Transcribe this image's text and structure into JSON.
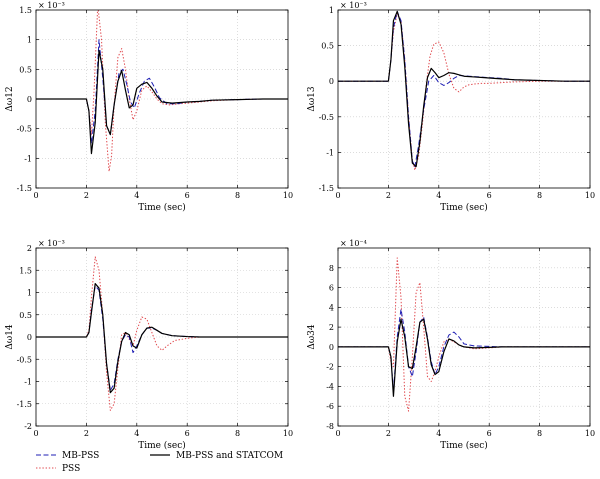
{
  "colors": {
    "mbpss": "#1f1fb4",
    "pss": "#e0474c",
    "statcom": "#000000",
    "grid": "#c8c8c8"
  },
  "legend": {
    "placement": "bottom",
    "entries": [
      {
        "label": "MB-PSS",
        "series": "mbpss",
        "style": "dashed"
      },
      {
        "label": "PSS",
        "series": "pss",
        "style": "dotted"
      },
      {
        "label": "MB-PSS and STATCOM",
        "series": "statcom",
        "style": "solid"
      }
    ]
  },
  "chart_data": [
    {
      "type": "line",
      "ylabel": "Δω12",
      "xlabel": "Time (sec)",
      "exponent": "× 10⁻³",
      "xlim": [
        0,
        10
      ],
      "ylim": [
        -1.5,
        1.5
      ],
      "xticks": [
        0,
        2,
        4,
        6,
        8,
        10
      ],
      "yticks": [
        -1.5,
        -1,
        -0.5,
        0,
        0.5,
        1,
        1.5
      ],
      "grid": true,
      "series": [
        {
          "name": "MB-PSS",
          "key": "mbpss",
          "x": [
            0,
            2,
            2.1,
            2.2,
            2.35,
            2.5,
            2.65,
            2.8,
            2.95,
            3.1,
            3.3,
            3.45,
            3.6,
            3.75,
            3.9,
            4.1,
            4.3,
            4.5,
            4.7,
            4.9,
            5.2,
            5.6,
            6,
            6.5,
            7,
            8,
            9,
            10
          ],
          "y": [
            0,
            0,
            -0.2,
            -0.75,
            -0.2,
            1.0,
            0.35,
            -0.45,
            -0.6,
            -0.1,
            0.45,
            0.5,
            0.25,
            -0.05,
            -0.15,
            0.1,
            0.3,
            0.35,
            0.2,
            0.02,
            -0.08,
            -0.08,
            -0.05,
            -0.04,
            -0.02,
            -0.01,
            0,
            0
          ]
        },
        {
          "name": "PSS",
          "key": "pss",
          "x": [
            0,
            2,
            2.1,
            2.2,
            2.3,
            2.45,
            2.6,
            2.75,
            2.9,
            3.0,
            3.1,
            3.25,
            3.4,
            3.55,
            3.7,
            3.85,
            4.0,
            4.2,
            4.4,
            4.6,
            4.8,
            5.0,
            5.3,
            5.7,
            6,
            6.5,
            7,
            8,
            9,
            10
          ],
          "y": [
            0,
            0,
            -0.2,
            -0.6,
            0.1,
            1.58,
            1.0,
            -0.4,
            -1.22,
            -0.95,
            -0.1,
            0.7,
            0.85,
            0.5,
            0.0,
            -0.35,
            -0.2,
            0.15,
            0.22,
            0.12,
            0.0,
            -0.08,
            -0.1,
            -0.08,
            -0.07,
            -0.05,
            -0.03,
            -0.01,
            0,
            0
          ]
        },
        {
          "name": "MB-PSS and STATCOM",
          "key": "statcom",
          "x": [
            0,
            2,
            2.1,
            2.2,
            2.35,
            2.5,
            2.65,
            2.8,
            2.95,
            3.1,
            3.25,
            3.4,
            3.55,
            3.7,
            3.85,
            4.0,
            4.2,
            4.4,
            4.6,
            4.8,
            5.0,
            5.4,
            6,
            6.5,
            7,
            8,
            9,
            10
          ],
          "y": [
            0,
            0,
            -0.2,
            -0.92,
            -0.4,
            0.82,
            0.5,
            -0.45,
            -0.6,
            -0.1,
            0.3,
            0.48,
            0.15,
            -0.15,
            -0.1,
            0.18,
            0.25,
            0.28,
            0.18,
            0.05,
            -0.05,
            -0.07,
            -0.05,
            -0.04,
            -0.02,
            -0.01,
            0,
            0
          ]
        }
      ]
    },
    {
      "type": "line",
      "ylabel": "Δω13",
      "xlabel": "Time (sec)",
      "exponent": "× 10⁻³",
      "xlim": [
        0,
        10
      ],
      "ylim": [
        -1.5,
        1
      ],
      "xticks": [
        0,
        2,
        4,
        6,
        8,
        10
      ],
      "yticks": [
        -1.5,
        -1,
        -0.5,
        0,
        0.5,
        1
      ],
      "grid": true,
      "series": [
        {
          "name": "MB-PSS",
          "key": "mbpss",
          "x": [
            0,
            2,
            2.1,
            2.2,
            2.35,
            2.5,
            2.65,
            2.8,
            2.95,
            3.05,
            3.2,
            3.4,
            3.6,
            3.8,
            4.0,
            4.2,
            4.4,
            4.6,
            4.8,
            5.2,
            5.6,
            6,
            6.5,
            7,
            8,
            9,
            10
          ],
          "y": [
            0,
            0,
            0.3,
            0.75,
            0.98,
            0.85,
            0.3,
            -0.5,
            -1.12,
            -1.2,
            -0.9,
            -0.4,
            0.0,
            0.08,
            -0.02,
            -0.06,
            -0.02,
            0.04,
            0.08,
            0.07,
            0.06,
            0.05,
            0.04,
            0.02,
            0.01,
            0,
            0
          ]
        },
        {
          "name": "PSS",
          "key": "pss",
          "x": [
            0,
            2,
            2.1,
            2.2,
            2.35,
            2.5,
            2.65,
            2.8,
            2.95,
            3.05,
            3.2,
            3.35,
            3.5,
            3.65,
            3.8,
            4.0,
            4.2,
            4.4,
            4.6,
            4.8,
            5.0,
            5.2,
            5.4,
            5.7,
            6,
            6.5,
            7,
            8,
            9,
            10
          ],
          "y": [
            0,
            0,
            0.3,
            0.7,
            0.95,
            0.85,
            0.3,
            -0.5,
            -1.1,
            -1.25,
            -1.05,
            -0.6,
            -0.05,
            0.35,
            0.52,
            0.55,
            0.4,
            0.1,
            -0.1,
            -0.15,
            -0.08,
            -0.05,
            -0.04,
            -0.03,
            -0.03,
            -0.02,
            -0.01,
            0,
            0,
            0
          ]
        },
        {
          "name": "MB-PSS and STATCOM",
          "key": "statcom",
          "x": [
            0,
            2,
            2.1,
            2.2,
            2.35,
            2.5,
            2.65,
            2.8,
            2.95,
            3.1,
            3.25,
            3.4,
            3.55,
            3.7,
            3.85,
            4.0,
            4.2,
            4.4,
            4.6,
            4.8,
            5.0,
            5.4,
            5.8,
            6.2,
            7,
            8,
            9,
            10
          ],
          "y": [
            0,
            0,
            0.3,
            0.85,
            0.98,
            0.8,
            0.2,
            -0.6,
            -1.15,
            -1.2,
            -0.85,
            -0.35,
            0.05,
            0.18,
            0.12,
            0.05,
            0.08,
            0.12,
            0.11,
            0.09,
            0.07,
            0.06,
            0.05,
            0.04,
            0.02,
            0.01,
            0,
            0
          ]
        }
      ]
    },
    {
      "type": "line",
      "ylabel": "Δω14",
      "xlabel": "Time (sec)",
      "exponent": "× 10⁻³",
      "xlim": [
        0,
        10
      ],
      "ylim": [
        -2,
        2
      ],
      "xticks": [
        0,
        2,
        4,
        6,
        8,
        10
      ],
      "yticks": [
        -2,
        -1.5,
        -1,
        -0.5,
        0,
        0.5,
        1,
        1.5,
        2
      ],
      "grid": true,
      "series": [
        {
          "name": "MB-PSS",
          "key": "mbpss",
          "x": [
            0,
            2,
            2.1,
            2.2,
            2.35,
            2.5,
            2.65,
            2.8,
            2.95,
            3.1,
            3.25,
            3.4,
            3.55,
            3.7,
            3.85,
            4.0,
            4.2,
            4.4,
            4.6,
            4.8,
            5.0,
            5.4,
            6,
            6.5,
            7,
            8,
            9,
            10
          ],
          "y": [
            0,
            0,
            0.1,
            0.6,
            1.15,
            1.05,
            0.4,
            -0.6,
            -1.2,
            -1.05,
            -0.5,
            -0.1,
            0.05,
            0.0,
            -0.35,
            -0.2,
            0.05,
            0.2,
            0.2,
            0.15,
            0.08,
            0.03,
            0.01,
            0,
            0,
            0,
            0,
            0
          ]
        },
        {
          "name": "PSS",
          "key": "pss",
          "x": [
            0,
            2,
            2.1,
            2.2,
            2.35,
            2.5,
            2.65,
            2.8,
            2.95,
            3.1,
            3.25,
            3.4,
            3.55,
            3.7,
            3.85,
            4.0,
            4.2,
            4.4,
            4.6,
            4.8,
            5.0,
            5.2,
            5.5,
            6,
            6.5,
            7,
            8,
            9,
            10
          ],
          "y": [
            0,
            0,
            0.15,
            0.9,
            1.8,
            1.5,
            0.5,
            -0.8,
            -1.65,
            -1.5,
            -0.7,
            0.05,
            0.1,
            -0.05,
            -0.2,
            0.15,
            0.45,
            0.4,
            0.1,
            -0.2,
            -0.3,
            -0.2,
            -0.08,
            -0.03,
            0,
            0,
            0,
            0,
            0
          ]
        },
        {
          "name": "MB-PSS and STATCOM",
          "key": "statcom",
          "x": [
            0,
            2,
            2.1,
            2.2,
            2.35,
            2.5,
            2.65,
            2.8,
            2.95,
            3.1,
            3.25,
            3.4,
            3.55,
            3.7,
            3.85,
            4.0,
            4.2,
            4.4,
            4.6,
            4.8,
            5.0,
            5.4,
            6,
            6.5,
            7,
            8,
            9,
            10
          ],
          "y": [
            0,
            0,
            0.1,
            0.55,
            1.2,
            1.1,
            0.5,
            -0.6,
            -1.25,
            -1.15,
            -0.55,
            -0.1,
            0.1,
            0.05,
            -0.2,
            -0.25,
            0.05,
            0.2,
            0.22,
            0.15,
            0.08,
            0.03,
            0.01,
            0,
            0,
            0,
            0,
            0
          ]
        }
      ]
    },
    {
      "type": "line",
      "ylabel": "Δω34",
      "xlabel": "Time (sec)",
      "exponent": "× 10⁻⁴",
      "xlim": [
        0,
        10
      ],
      "ylim": [
        -8,
        10
      ],
      "xticks": [
        0,
        2,
        4,
        6,
        8,
        10
      ],
      "yticks": [
        -8,
        -6,
        -4,
        -2,
        0,
        2,
        4,
        6,
        8
      ],
      "grid": true,
      "series": [
        {
          "name": "MB-PSS",
          "key": "mbpss",
          "x": [
            0,
            2,
            2.1,
            2.2,
            2.35,
            2.5,
            2.65,
            2.8,
            2.95,
            3.1,
            3.25,
            3.4,
            3.55,
            3.7,
            3.85,
            4.0,
            4.2,
            4.4,
            4.6,
            4.8,
            5.0,
            5.4,
            6,
            6.5,
            7,
            8,
            9,
            10
          ],
          "y": [
            0,
            0,
            -1,
            -4.5,
            1,
            3.8,
            1.5,
            -2,
            -3,
            -0.5,
            2.5,
            3,
            1,
            -1.5,
            -2.8,
            -2,
            0,
            1.2,
            1.5,
            1,
            0.3,
            0.1,
            0.05,
            0,
            0,
            0,
            0,
            0
          ]
        },
        {
          "name": "PSS",
          "key": "pss",
          "x": [
            0,
            2,
            2.1,
            2.2,
            2.35,
            2.5,
            2.65,
            2.8,
            2.95,
            3.1,
            3.25,
            3.4,
            3.55,
            3.7,
            3.85,
            4.0,
            4.2,
            4.4,
            4.6,
            4.8,
            5.0,
            5.4,
            6,
            6.5,
            7,
            8,
            9,
            10
          ],
          "y": [
            0,
            0,
            -1.5,
            -2,
            9,
            5,
            -5,
            -6.5,
            -1,
            5.5,
            6.5,
            2,
            -3,
            -3.5,
            -2.5,
            -1,
            0.5,
            0.8,
            0.5,
            0.2,
            0,
            -0.2,
            -0.1,
            0,
            0,
            0,
            0,
            0
          ]
        },
        {
          "name": "MB-PSS and STATCOM",
          "key": "statcom",
          "x": [
            0,
            2,
            2.1,
            2.2,
            2.35,
            2.5,
            2.65,
            2.8,
            2.95,
            3.1,
            3.25,
            3.4,
            3.55,
            3.7,
            3.85,
            4.0,
            4.2,
            4.4,
            4.6,
            4.8,
            5.0,
            5.4,
            6,
            6.5,
            7,
            8,
            9,
            10
          ],
          "y": [
            0,
            0,
            -1,
            -5,
            0.5,
            2.8,
            1,
            -2,
            -2.2,
            0,
            2.5,
            2.8,
            0.8,
            -1.8,
            -2.8,
            -2.5,
            -0.5,
            0.8,
            0.6,
            0.2,
            0,
            -0.1,
            -0.05,
            0,
            0,
            0,
            0,
            0
          ]
        }
      ]
    }
  ]
}
